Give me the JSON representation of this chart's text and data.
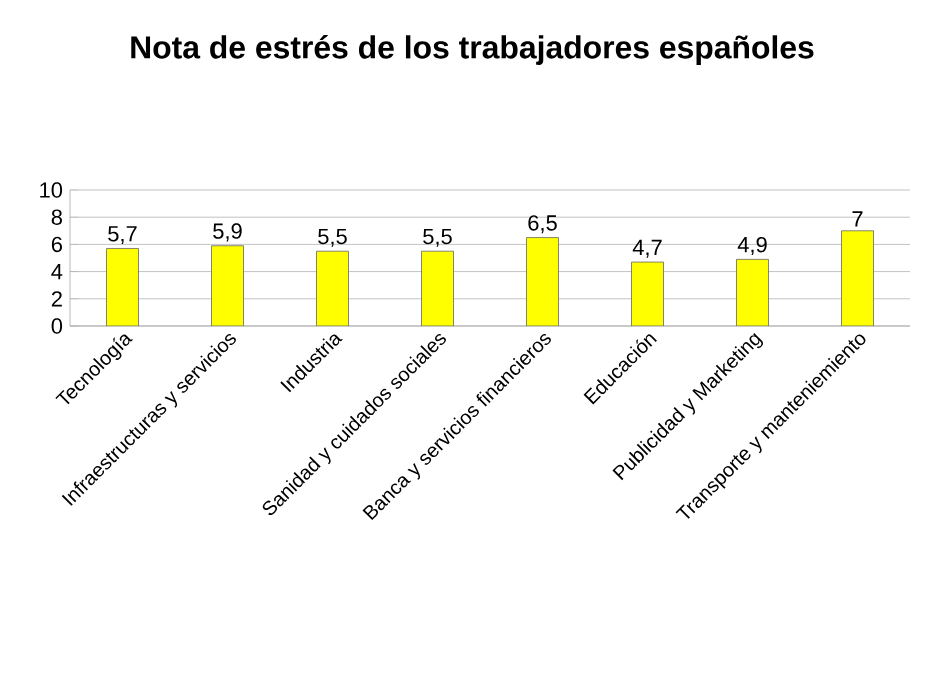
{
  "chart_data": {
    "type": "bar",
    "title": "Nota de estrés de los trabajadores españoles",
    "categories": [
      "Tecnología",
      "Infraestructuras y servicios",
      "Industria",
      "Sanidad y cuidados sociales",
      "Banca y servicios financieros",
      "Educación",
      "Publicidad y Marketing",
      "Transporte y manteniemiento"
    ],
    "values": [
      5.7,
      5.9,
      5.5,
      5.5,
      6.5,
      4.7,
      4.9,
      7
    ],
    "value_labels": [
      "5,7",
      "5,9",
      "5,5",
      "5,5",
      "6,5",
      "4,7",
      "4,9",
      "7"
    ],
    "color": "#ffff00",
    "ylim": [
      0,
      10
    ],
    "yticks": [
      0,
      2,
      4,
      6,
      8,
      10
    ],
    "grid": "y"
  }
}
